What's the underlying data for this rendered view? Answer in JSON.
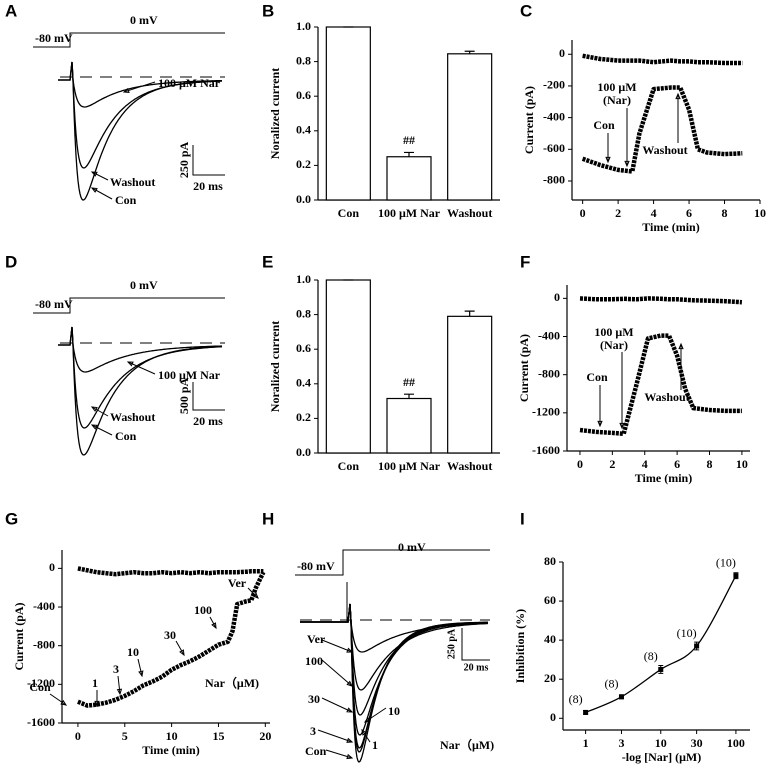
{
  "panels": [
    "A",
    "B",
    "C",
    "D",
    "E",
    "F",
    "G",
    "H",
    "I"
  ],
  "traces": [
    {
      "voltage": [
        "-80 mV",
        "0 mV"
      ],
      "labels": [
        "100 μM Nar",
        "Washout",
        "Con"
      ],
      "scale": [
        "250 pA",
        "20 ms"
      ]
    },
    {
      "voltage": [
        "-80 mV",
        "0 mV"
      ],
      "labels": [
        "100 μM Nar",
        "Washout",
        "Con"
      ],
      "scale": [
        "500 pA",
        "20 ms"
      ]
    },
    {
      "voltage": [
        "-80 mV",
        "0 mV"
      ],
      "labels": [
        "Ver",
        "100",
        "30",
        "10",
        "3",
        "1",
        "Con",
        "Nar（μM)"
      ],
      "scale": [
        "250 pA",
        "20 ms"
      ]
    }
  ],
  "chart_data": [
    {
      "type": "bar",
      "ylabel": "Noralized current",
      "categories": [
        "Con",
        "100 μM Nar",
        "Washout"
      ],
      "values": [
        1.0,
        0.25,
        0.845
      ],
      "errors": [
        0,
        0.025,
        0.015
      ],
      "color": "#ffffff",
      "ylim": [
        0,
        1
      ],
      "yticks": [
        {
          "value": 0,
          "label": "0.0"
        },
        0.2,
        0.4,
        0.6,
        0.8,
        {
          "value": 1,
          "label": "1.0"
        }
      ],
      "annotations": [
        "##"
      ]
    },
    {
      "type": "line",
      "xlabel": "Time (min)",
      "ylabel": "Current (pA)",
      "x": [
        0,
        1,
        2,
        2.8,
        3.2,
        4,
        5,
        5.5,
        6,
        6.5,
        7,
        8,
        9
      ],
      "series": [
        {
          "color": "#000000",
          "values": [
            -10,
            -30,
            -40,
            -40,
            -40,
            -50,
            -40,
            -45,
            -45,
            -50,
            -50,
            -55,
            -55
          ]
        },
        {
          "color": "#000000",
          "values": [
            -660,
            -700,
            -730,
            -740,
            -500,
            -220,
            -210,
            -210,
            -350,
            -600,
            -620,
            -630,
            -625
          ]
        }
      ],
      "xlim": [
        -0.6,
        10
      ],
      "xticks": [
        0,
        2,
        4,
        6,
        8,
        10
      ],
      "ylim": [
        -920,
        90
      ],
      "yticks": [
        0,
        -200,
        -400,
        -600,
        -800
      ],
      "annotations": [
        "Con",
        "100 μM",
        "(Nar)",
        "Washout"
      ]
    },
    {
      "type": "bar",
      "ylabel": "Noralized current",
      "categories": [
        "Con",
        "100 μM Nar",
        "Washout"
      ],
      "values": [
        1.0,
        0.315,
        0.79
      ],
      "errors": [
        0,
        0.025,
        0.03
      ],
      "color": "#ffffff",
      "ylim": [
        0,
        1
      ],
      "yticks": [
        {
          "value": 0,
          "label": "0.0"
        },
        0.2,
        0.4,
        0.6,
        0.8,
        {
          "value": 1,
          "label": "1.0"
        }
      ],
      "annotations": [
        "##"
      ]
    },
    {
      "type": "line",
      "xlabel": "Time (min)",
      "ylabel": "Current (pA)",
      "x": [
        0,
        1,
        2,
        2.7,
        3.5,
        4.2,
        5,
        5.5,
        6,
        6.5,
        7,
        8,
        9,
        10
      ],
      "series": [
        {
          "color": "#000000",
          "values": [
            0,
            -10,
            -10,
            -5,
            -10,
            0,
            -5,
            -10,
            -10,
            -15,
            -20,
            -25,
            -30,
            -40
          ]
        },
        {
          "color": "#000000",
          "values": [
            -1380,
            -1400,
            -1410,
            -1420,
            -900,
            -420,
            -390,
            -390,
            -600,
            -950,
            -1150,
            -1170,
            -1180,
            -1180
          ]
        }
      ],
      "xlim": [
        -0.8,
        10.5
      ],
      "xticks": [
        0,
        2,
        4,
        6,
        8,
        10
      ],
      "ylim": [
        -1600,
        140
      ],
      "yticks": [
        0,
        -400,
        -800,
        -1200,
        -1600
      ],
      "annotations": [
        "Con",
        "100 μM",
        "(Nar)",
        "Washout"
      ]
    },
    {
      "type": "line",
      "xlabel": "Time (min)",
      "ylabel": "Current (pA)",
      "x": [
        0,
        1,
        2,
        3,
        4,
        5,
        6,
        7,
        8,
        9,
        10,
        11,
        12,
        13,
        14,
        15,
        16,
        16.5,
        17,
        18,
        18.5,
        19,
        19.8
      ],
      "series": [
        {
          "color": "#000000",
          "values": [
            0,
            -20,
            -40,
            -50,
            -60,
            -50,
            -40,
            -50,
            -50,
            -40,
            -50,
            -40,
            -50,
            -40,
            -50,
            -40,
            -40,
            -40,
            -40,
            -35,
            -30,
            -30,
            -30
          ]
        },
        {
          "color": "#000000",
          "values": [
            -1380,
            -1420,
            -1410,
            -1390,
            -1360,
            -1320,
            -1270,
            -1210,
            -1170,
            -1120,
            -1050,
            -1000,
            -960,
            -910,
            -850,
            -790,
            -760,
            -650,
            -370,
            -340,
            -330,
            -200,
            -40
          ]
        }
      ],
      "xlim": [
        -1.7,
        20.5
      ],
      "xticks": [
        0,
        5,
        10,
        15,
        20
      ],
      "ylim": [
        -1600,
        190
      ],
      "yticks": [
        0,
        -400,
        -800,
        -1200,
        -1600
      ],
      "annotations": [
        "Con",
        "1",
        "3",
        "10",
        "30",
        "100",
        "Ver",
        "Nar（μM)"
      ]
    },
    {
      "type": "scatter",
      "xlabel": "-log [Nar] (μM)",
      "ylabel": "Inhibition (%)",
      "xlog": true,
      "x": [
        1,
        3,
        10,
        30,
        100
      ],
      "values": [
        3,
        11,
        25,
        37,
        73
      ],
      "errors": [
        1,
        1,
        2,
        2,
        1.5
      ],
      "point_labels": [
        "(8)",
        "(8)",
        "(8)",
        "(10)",
        "(10)"
      ],
      "color": "#000000",
      "xlim": [
        0.5,
        154
      ],
      "xticks": [
        1,
        3,
        10,
        30,
        100
      ],
      "ylim": [
        -6,
        80
      ],
      "yticks": [
        0,
        20,
        40,
        60,
        80
      ]
    }
  ]
}
